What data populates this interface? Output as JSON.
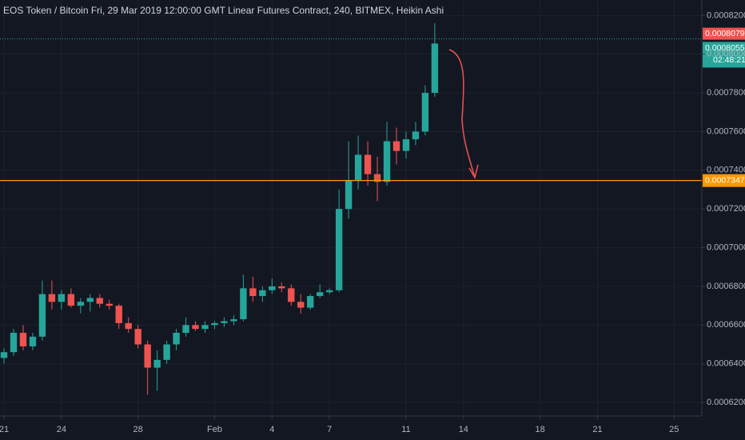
{
  "chart_data": {
    "type": "candlestick",
    "title": "EOS Token / Bitcoin Fri, 29 Mar 2019 12:00:00 GMT Linear Futures Contract, 240, BITMEX, Heikin Ashi",
    "x": [
      0,
      0.5,
      1,
      1.5,
      2,
      2.5,
      3,
      3.5,
      4,
      4.5,
      5,
      5.5,
      6,
      6.5,
      7,
      7.5,
      8,
      8.5,
      9,
      9.5,
      10,
      10.5,
      11,
      11.5,
      12,
      12.5,
      13,
      13.5,
      14,
      14.5,
      15,
      15.5,
      16,
      16.5,
      17,
      17.5,
      18,
      18.5,
      19,
      19.5,
      20,
      20.5,
      21,
      21.5,
      22,
      22.5
    ],
    "open": [
      0.000643,
      0.000646,
      0.000656,
      0.000649,
      0.000654,
      0.000676,
      0.000672,
      0.000676,
      0.00067,
      0.000672,
      0.000674,
      0.000671,
      0.00067,
      0.000661,
      0.000658,
      0.00065,
      0.000638,
      0.000642,
      0.00065,
      0.000656,
      0.00066,
      0.000658,
      0.00066,
      0.000661,
      0.000662,
      0.000663,
      0.000679,
      0.000675,
      0.000678,
      0.00068,
      0.000679,
      0.000672,
      0.000669,
      0.000675,
      0.000677,
      0.000678,
      0.00072,
      0.000735,
      0.000748,
      0.000738,
      0.000734,
      0.000755,
      0.00075,
      0.000756,
      0.00076,
      0.00078
    ],
    "high": [
      0.000648,
      0.000658,
      0.00066,
      0.000656,
      0.000683,
      0.000683,
      0.000678,
      0.000679,
      0.000674,
      0.000676,
      0.000676,
      0.000673,
      0.000671,
      0.000664,
      0.00066,
      0.000652,
      0.000647,
      0.000652,
      0.000658,
      0.000664,
      0.000662,
      0.000662,
      0.000662,
      0.000664,
      0.000665,
      0.000686,
      0.000685,
      0.00068,
      0.000684,
      0.000682,
      0.000681,
      0.000676,
      0.000676,
      0.000681,
      0.000679,
      0.00073,
      0.000755,
      0.000758,
      0.000755,
      0.000747,
      0.000765,
      0.000762,
      0.00076,
      0.000765,
      0.000784,
      0.000816
    ],
    "low": [
      0.00064,
      0.000644,
      0.000647,
      0.000647,
      0.000652,
      0.000668,
      0.000668,
      0.000669,
      0.000666,
      0.000667,
      0.000669,
      0.000668,
      0.000658,
      0.000656,
      0.000648,
      0.000624,
      0.000626,
      0.00064,
      0.000647,
      0.000654,
      0.000657,
      0.000656,
      0.000658,
      0.000659,
      0.00066,
      0.000662,
      0.000672,
      0.000672,
      0.000676,
      0.000677,
      0.00067,
      0.000666,
      0.000668,
      0.000674,
      0.000676,
      0.000677,
      0.000715,
      0.00073,
      0.000732,
      0.000724,
      0.000732,
      0.000743,
      0.000746,
      0.000753,
      0.000758,
      0.000778
    ],
    "close": [
      0.000646,
      0.000656,
      0.000649,
      0.000654,
      0.000676,
      0.000672,
      0.000676,
      0.00067,
      0.000672,
      0.000674,
      0.000671,
      0.00067,
      0.000661,
      0.000658,
      0.00065,
      0.000638,
      0.000642,
      0.00065,
      0.000656,
      0.00066,
      0.000658,
      0.00066,
      0.000661,
      0.000662,
      0.000663,
      0.000679,
      0.000675,
      0.000678,
      0.00068,
      0.000679,
      0.000672,
      0.000669,
      0.000675,
      0.000677,
      0.000678,
      0.00072,
      0.000735,
      0.000748,
      0.000738,
      0.000734,
      0.000755,
      0.00075,
      0.000756,
      0.00076,
      0.00078,
      0.0008055
    ],
    "up_color": "#26a69a",
    "down_color": "#ef5350",
    "xlim": [
      -0.21,
      36.45
    ],
    "xticks": [
      {
        "value": 0,
        "label": "21"
      },
      {
        "value": 3,
        "label": "24"
      },
      {
        "value": 7,
        "label": "28"
      },
      {
        "value": 11,
        "label": "Feb"
      },
      {
        "value": 14,
        "label": "4"
      },
      {
        "value": 17,
        "label": "7"
      },
      {
        "value": 21,
        "label": "11"
      },
      {
        "value": 24,
        "label": "14"
      },
      {
        "value": 28,
        "label": "18"
      },
      {
        "value": 31,
        "label": "21"
      },
      {
        "value": 35,
        "label": "25"
      }
    ],
    "ylim": [
      0.000613,
      0.000828
    ],
    "yticks": [
      {
        "value": 0.00062,
        "label": "0.0006200"
      },
      {
        "value": 0.00064,
        "label": "0.0006400"
      },
      {
        "value": 0.00066,
        "label": "0.0006600"
      },
      {
        "value": 0.00068,
        "label": "0.0006800"
      },
      {
        "value": 0.0007,
        "label": "0.0007000"
      },
      {
        "value": 0.00072,
        "label": "0.0007200"
      },
      {
        "value": 0.00074,
        "label": "0.0007400"
      },
      {
        "value": 0.00076,
        "label": "0.0007600"
      },
      {
        "value": 0.00078,
        "label": "0.0007800"
      },
      {
        "value": 0.0008,
        "label": "0.0008000"
      },
      {
        "value": 0.00082,
        "label": "0.0008200"
      }
    ],
    "grid": true,
    "horizontal_line": {
      "value": 0.0007347,
      "color": "#ff9800"
    },
    "high_marker": {
      "value": 0.0008079,
      "color": "#ef5350"
    },
    "last_price": {
      "value": 0.0008055,
      "timer": "02:48:21",
      "color": "#26a69a"
    }
  }
}
